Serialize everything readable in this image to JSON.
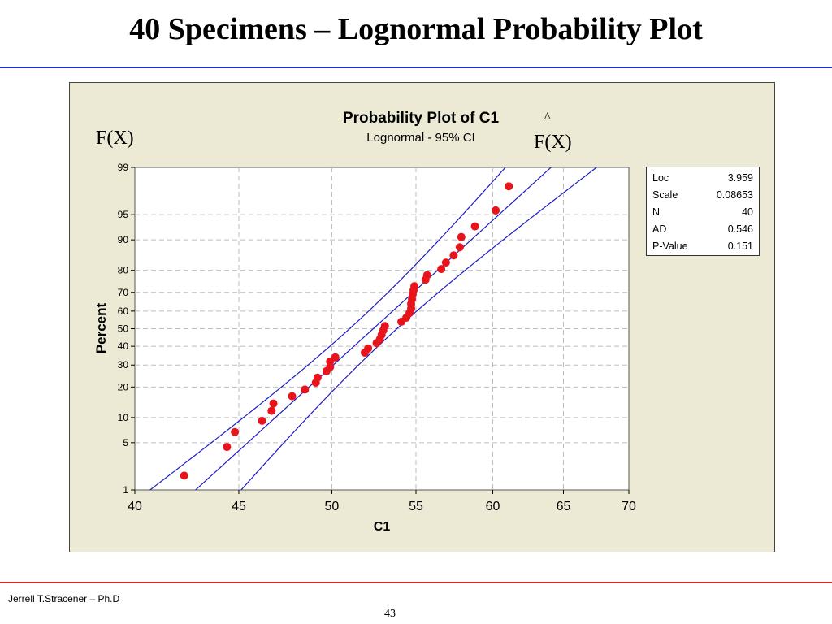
{
  "slide": {
    "title": "40 Specimens – Lognormal Probability Plot",
    "footer_author": "Jerrell T.Stracener – Ph.D",
    "page_number": "43"
  },
  "annotations": {
    "fx_left": "F(X)",
    "fx_right_hat": "^",
    "fx_right": "F(X)"
  },
  "colors": {
    "points": "#e8141b",
    "fit_lines": "#1d1dc4",
    "panel_bg": "#ecead5",
    "plot_bg": "#ffffff",
    "title_rule": "#1c2fc9",
    "footer_rule": "#d42a2a"
  },
  "stats": [
    {
      "label": "Loc",
      "value": "3.959"
    },
    {
      "label": "Scale",
      "value": "0.08653"
    },
    {
      "label": "N",
      "value": "40"
    },
    {
      "label": "AD",
      "value": "0.546"
    },
    {
      "label": "P-Value",
      "value": "0.151"
    }
  ],
  "chart_data": {
    "type": "scatter",
    "title": "Probability Plot of C1",
    "subtitle": "Lognormal - 95% CI",
    "xlabel": "C1",
    "ylabel": "Percent",
    "x_scale": "log",
    "y_scale": "lognormal-probability",
    "xlim": [
      40,
      70
    ],
    "ylim": [
      1,
      99
    ],
    "x_ticks": [
      40,
      45,
      50,
      55,
      60,
      65,
      70
    ],
    "y_ticks": [
      1,
      5,
      10,
      20,
      30,
      40,
      50,
      60,
      70,
      80,
      90,
      95,
      99
    ],
    "grid": true,
    "legend_position": "right",
    "fit": {
      "loc": 3.959,
      "scale": 0.08653,
      "n": 40,
      "confidence": 0.95
    },
    "points": [
      {
        "x": 42.3,
        "p": 1.7
      },
      {
        "x": 44.4,
        "p": 4.4
      },
      {
        "x": 44.8,
        "p": 6.8
      },
      {
        "x": 46.2,
        "p": 9.2
      },
      {
        "x": 46.7,
        "p": 11.8
      },
      {
        "x": 46.8,
        "p": 14.0
      },
      {
        "x": 47.8,
        "p": 16.5
      },
      {
        "x": 48.5,
        "p": 19.0
      },
      {
        "x": 49.1,
        "p": 21.8
      },
      {
        "x": 49.2,
        "p": 24.0
      },
      {
        "x": 49.7,
        "p": 27.0
      },
      {
        "x": 49.9,
        "p": 29.0
      },
      {
        "x": 49.9,
        "p": 31.8
      },
      {
        "x": 50.2,
        "p": 34.0
      },
      {
        "x": 51.9,
        "p": 36.5
      },
      {
        "x": 52.1,
        "p": 38.8
      },
      {
        "x": 52.6,
        "p": 41.8
      },
      {
        "x": 52.8,
        "p": 44.0
      },
      {
        "x": 52.9,
        "p": 46.5
      },
      {
        "x": 53.0,
        "p": 49.0
      },
      {
        "x": 53.1,
        "p": 51.5
      },
      {
        "x": 54.1,
        "p": 54.0
      },
      {
        "x": 54.4,
        "p": 56.3
      },
      {
        "x": 54.6,
        "p": 59.0
      },
      {
        "x": 54.7,
        "p": 61.5
      },
      {
        "x": 54.7,
        "p": 64.0
      },
      {
        "x": 54.75,
        "p": 66.5
      },
      {
        "x": 54.8,
        "p": 69.0
      },
      {
        "x": 54.85,
        "p": 71.0
      },
      {
        "x": 54.9,
        "p": 73.0
      },
      {
        "x": 55.6,
        "p": 76.0
      },
      {
        "x": 55.7,
        "p": 78.0
      },
      {
        "x": 56.6,
        "p": 80.5
      },
      {
        "x": 56.9,
        "p": 83.0
      },
      {
        "x": 57.4,
        "p": 85.5
      },
      {
        "x": 57.8,
        "p": 88.0
      },
      {
        "x": 57.9,
        "p": 90.7
      },
      {
        "x": 58.8,
        "p": 93.0
      },
      {
        "x": 60.2,
        "p": 95.6
      },
      {
        "x": 61.1,
        "p": 98.0
      }
    ]
  }
}
